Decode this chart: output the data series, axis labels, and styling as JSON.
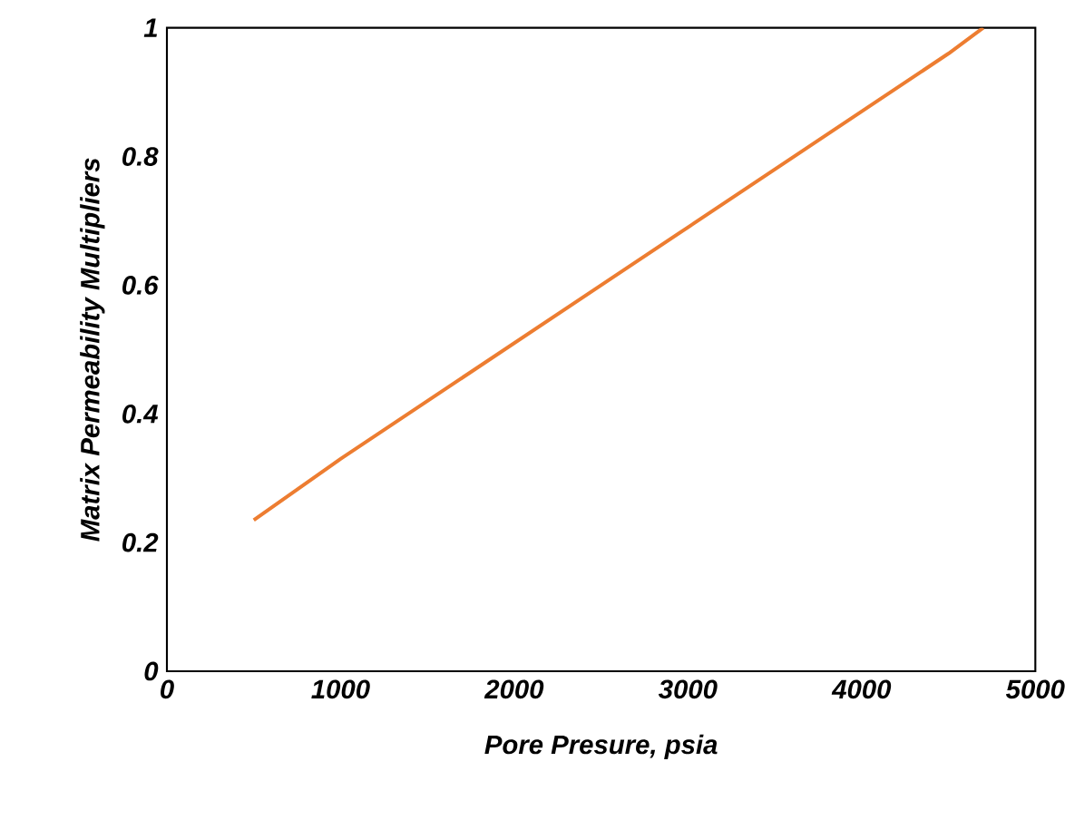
{
  "chart_data": {
    "type": "line",
    "xlabel": "Pore Presure, psia",
    "ylabel": "Matrix Permeability Multipliers",
    "x": [
      500,
      1000,
      1500,
      2000,
      2500,
      3000,
      3500,
      4000,
      4500,
      4700
    ],
    "series": [
      {
        "color": "#ed7d31",
        "values": [
          0.235,
          0.33,
          0.42,
          0.51,
          0.6,
          0.69,
          0.78,
          0.87,
          0.96,
          1.0
        ]
      }
    ],
    "xlim": [
      0,
      5000
    ],
    "ylim": [
      0,
      1
    ],
    "xticks": [
      0,
      1000,
      2000,
      3000,
      4000,
      5000
    ],
    "yticks": [
      0,
      0.2,
      0.4,
      0.6,
      0.8,
      1
    ],
    "grid": false,
    "marker": "none",
    "line_style": "solid"
  }
}
